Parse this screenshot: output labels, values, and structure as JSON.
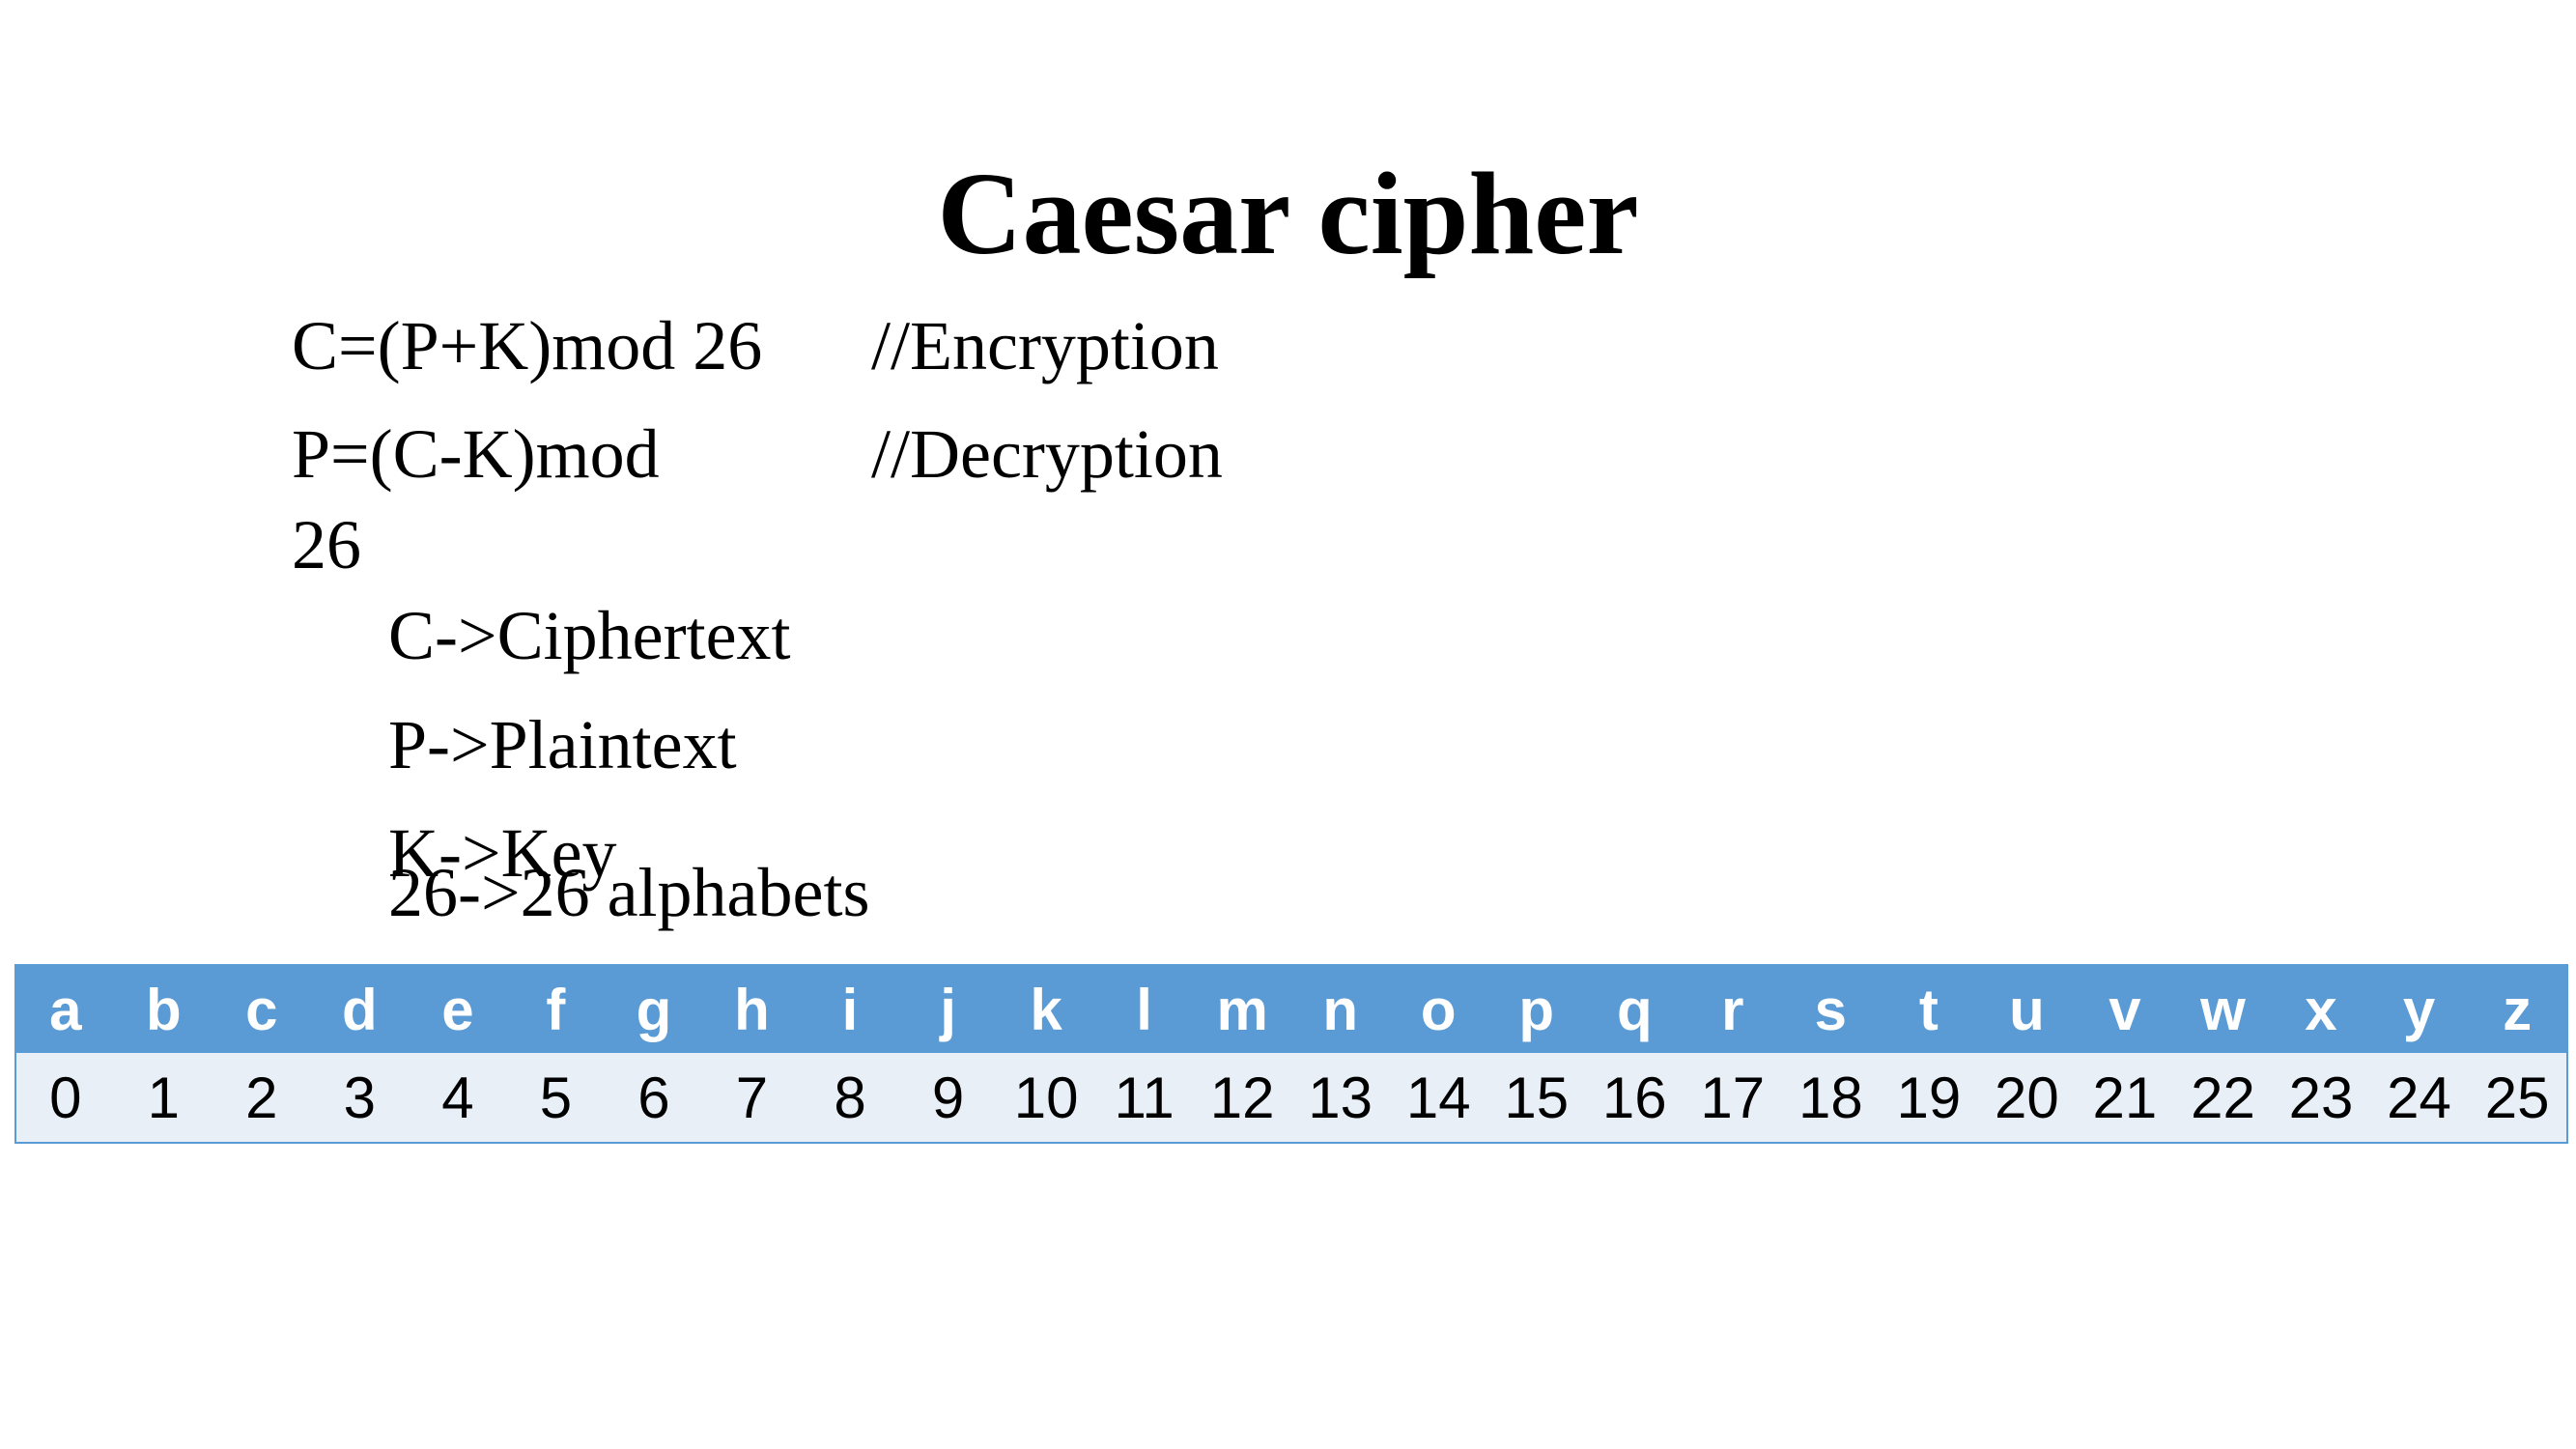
{
  "slide": {
    "title": "Caesar cipher",
    "formulas": [
      {
        "expression": "C=(P+K)mod 26",
        "comment": "//Encryption"
      },
      {
        "expression_line1": "P=(C-K)mod",
        "expression_line2": "26",
        "comment": "//Decryption"
      }
    ],
    "legend": [
      "C->Ciphertext",
      "P->Plaintext",
      "K->Key",
      "26->26 alphabets"
    ]
  },
  "colors": {
    "header_fill": "#5b9bd5",
    "body_fill": "#e9eff7",
    "border": "#5b9bd5"
  },
  "alphabet_table": {
    "letters": [
      "a",
      "b",
      "c",
      "d",
      "e",
      "f",
      "g",
      "h",
      "i",
      "j",
      "k",
      "l",
      "m",
      "n",
      "o",
      "p",
      "q",
      "r",
      "s",
      "t",
      "u",
      "v",
      "w",
      "x",
      "y",
      "z"
    ],
    "numbers": [
      "0",
      "1",
      "2",
      "3",
      "4",
      "5",
      "6",
      "7",
      "8",
      "9",
      "10",
      "11",
      "12",
      "13",
      "14",
      "15",
      "16",
      "17",
      "18",
      "19",
      "20",
      "21",
      "22",
      "23",
      "24",
      "25"
    ]
  }
}
